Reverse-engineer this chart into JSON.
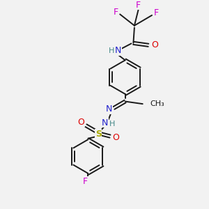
{
  "background_color": "#f2f2f2",
  "bond_color": "#1a1a1a",
  "lw": 1.4,
  "colors": {
    "C": "#1a1a1a",
    "N": "#2222cc",
    "O": "#dd0000",
    "F": "#cc00cc",
    "S": "#aaaa00",
    "H": "#448888"
  },
  "xlim": [
    0,
    10
  ],
  "ylim": [
    0,
    10
  ]
}
